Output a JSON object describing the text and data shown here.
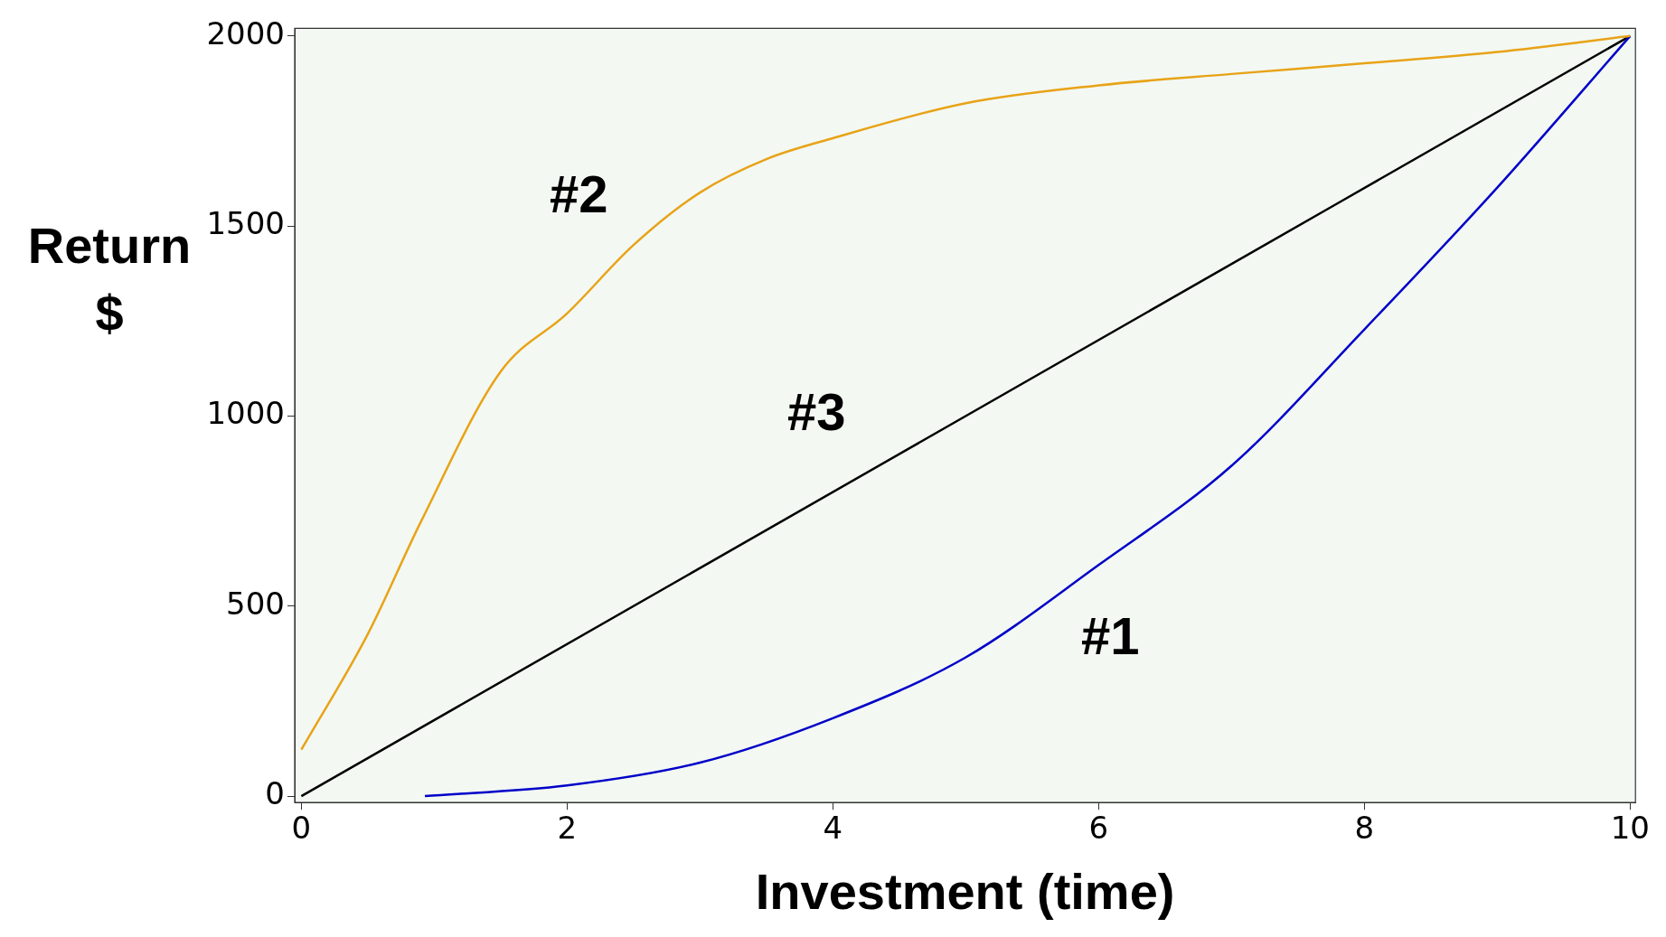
{
  "chart_data": {
    "type": "line",
    "xlabel": "Investment (time)",
    "ylabel": "Return\n$",
    "xlim": [
      -0.05,
      10.04
    ],
    "ylim": [
      -17,
      2020
    ],
    "xticks": [
      0,
      2,
      4,
      6,
      8,
      10
    ],
    "yticks": [
      0,
      500,
      1000,
      1500,
      2000
    ],
    "grid": false,
    "legend": false,
    "marker": "none",
    "line_style": "solid",
    "series": [
      {
        "name": "#2",
        "color": "#e8a317",
        "x": [
          0,
          0.5,
          0.9,
          1.5,
          2,
          2.5,
          3,
          3.5,
          4,
          5,
          6,
          7,
          8,
          9,
          10
        ],
        "values": [
          122,
          426,
          722,
          1117,
          1270,
          1450,
          1588,
          1676,
          1731,
          1823,
          1870,
          1900,
          1928,
          1958,
          2000
        ]
      },
      {
        "name": "#1",
        "color": "#0000c8",
        "x": [
          0.93,
          2,
          3,
          4,
          5,
          6,
          7,
          8,
          9,
          10
        ],
        "values": [
          0,
          28,
          88,
          205,
          365,
          608,
          869,
          1228,
          1601,
          2000
        ]
      },
      {
        "name": "#3",
        "color": "#000000",
        "x": [
          0,
          10
        ],
        "values": [
          0,
          2000
        ]
      }
    ]
  }
}
